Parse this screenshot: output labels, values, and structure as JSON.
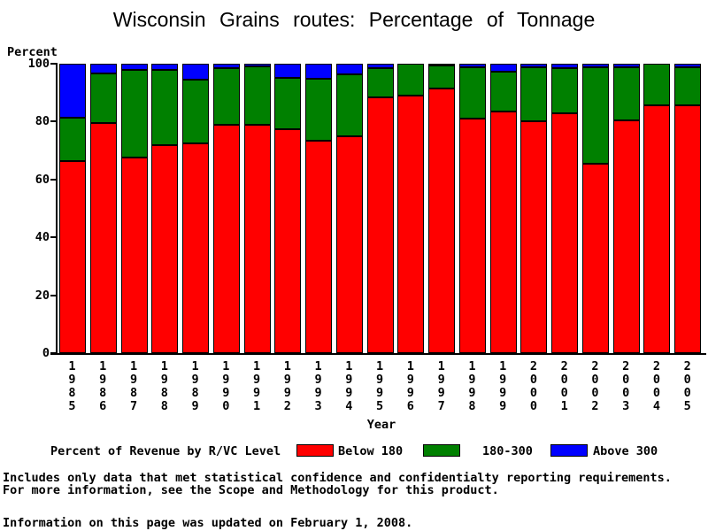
{
  "title": "Wisconsin Grains routes: Percentage of Tonnage",
  "y_axis": {
    "label": "Percent",
    "ticks": [
      0,
      20,
      40,
      60,
      80,
      100
    ]
  },
  "x_axis": {
    "label": "Year"
  },
  "legend": {
    "title": "Percent of Revenue by R/VC Level",
    "items": [
      {
        "label": "Below 180",
        "color": "#ff0000"
      },
      {
        "label": "180-300",
        "color": "#008000"
      },
      {
        "label": "Above 300",
        "color": "#0000ff"
      }
    ]
  },
  "footer": {
    "line1": "Includes only data that met statistical confidence and confidentialty reporting requirements.",
    "line2": "For more information, see the Scope and Methodology for this product.",
    "updated": "Information on this page was updated on February 1, 2008."
  },
  "chart_data": {
    "type": "bar",
    "stacked": true,
    "title": "Wisconsin Grains routes: Percentage of Tonnage",
    "xlabel": "Year",
    "ylabel": "Percent",
    "ylim": [
      0,
      100
    ],
    "grid": false,
    "legend_position": "bottom",
    "categories": [
      1985,
      1986,
      1987,
      1988,
      1989,
      1990,
      1991,
      1992,
      1993,
      1994,
      1995,
      1996,
      1997,
      1998,
      1999,
      2000,
      2001,
      2002,
      2003,
      2004,
      2005
    ],
    "series": [
      {
        "name": "Below 180",
        "color": "#ff0000",
        "values": [
          66.5,
          79.5,
          67.5,
          72.0,
          72.5,
          79.0,
          79.0,
          77.5,
          73.5,
          75.0,
          88.5,
          89.0,
          91.5,
          81.0,
          83.5,
          80.0,
          83.0,
          65.5,
          80.5,
          85.5,
          85.5
        ]
      },
      {
        "name": "180-300",
        "color": "#008000",
        "values": [
          15.0,
          17.0,
          30.5,
          26.0,
          22.0,
          19.5,
          20.0,
          17.7,
          21.3,
          21.2,
          10.1,
          11.0,
          7.8,
          17.8,
          13.8,
          18.7,
          15.5,
          33.3,
          18.2,
          14.5,
          13.2
        ]
      },
      {
        "name": "Above 300",
        "color": "#0000ff",
        "values": [
          18.5,
          3.5,
          2.0,
          2.0,
          5.5,
          1.5,
          1.0,
          4.8,
          5.2,
          3.8,
          1.4,
          0.0,
          0.7,
          1.2,
          2.7,
          1.3,
          1.5,
          1.2,
          1.3,
          0.0,
          1.3
        ]
      }
    ]
  }
}
